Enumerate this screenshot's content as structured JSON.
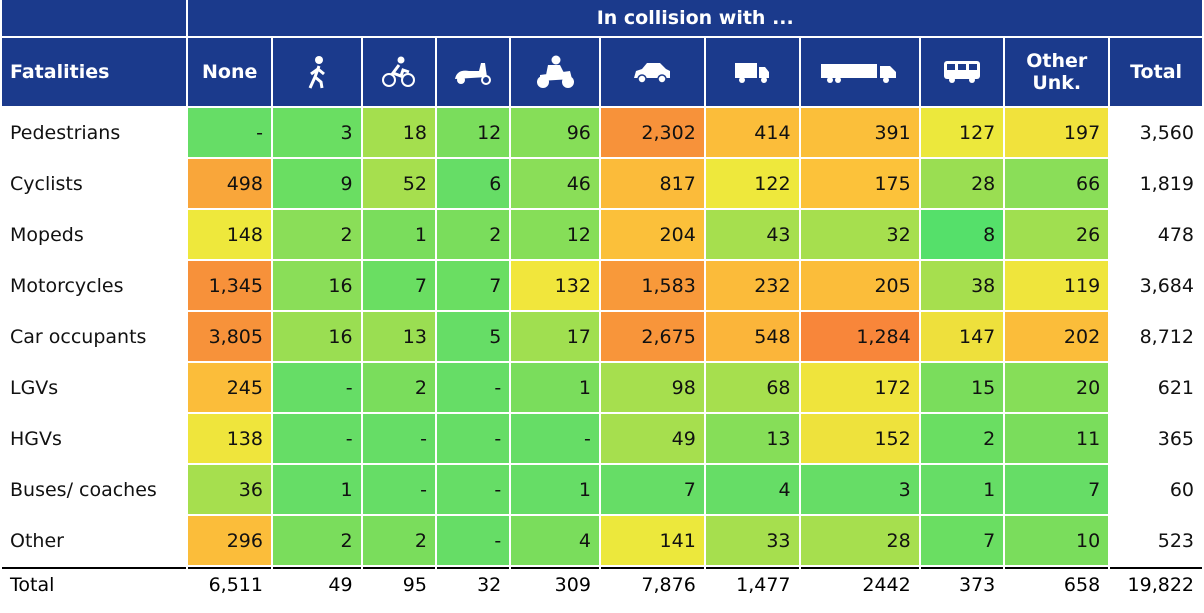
{
  "header": {
    "title": "In collision with ...",
    "row_label": "Fatalities",
    "none": "None",
    "other": "Other Unk.",
    "total": "Total"
  },
  "table": {
    "rows": [
      {
        "label": "Pedestrians",
        "cells": [
          "-",
          "3",
          "18",
          "12",
          "96",
          "2,302",
          "414",
          "391",
          "127",
          "197"
        ],
        "total": "3,560",
        "colors": [
          "#66dd66",
          "#6ade62",
          "#a4df4e",
          "#7add5c",
          "#86de58",
          "#f7923a",
          "#fbbd3a",
          "#fbbf3a",
          "#ece83c",
          "#f1e23c"
        ]
      },
      {
        "label": "Cyclists",
        "cells": [
          "498",
          "9",
          "52",
          "6",
          "46",
          "817",
          "122",
          "175",
          "28",
          "66"
        ],
        "total": "1,819",
        "colors": [
          "#f9a63a",
          "#6ade62",
          "#a6df4e",
          "#66dd66",
          "#8ade58",
          "#fbbb3a",
          "#eee83c",
          "#fcc23a",
          "#9ade52",
          "#8ade58"
        ]
      },
      {
        "label": "Mopeds",
        "cells": [
          "148",
          "2",
          "1",
          "2",
          "12",
          "204",
          "43",
          "32",
          "8",
          "26"
        ],
        "total": "478",
        "colors": [
          "#eee83c",
          "#8ade58",
          "#7add5c",
          "#7add5c",
          "#86de58",
          "#fbc03a",
          "#a6df4e",
          "#a6df4e",
          "#55e06a",
          "#a0df50"
        ]
      },
      {
        "label": "Motorcycles",
        "cells": [
          "1,345",
          "16",
          "7",
          "7",
          "132",
          "1,583",
          "232",
          "205",
          "38",
          "119"
        ],
        "total": "3,684",
        "colors": [
          "#f7913a",
          "#8ade58",
          "#6ade62",
          "#6ade62",
          "#f1e63c",
          "#f8993a",
          "#fbbb3a",
          "#fbbd3a",
          "#a6df4e",
          "#efe53c"
        ]
      },
      {
        "label": "Car occupants",
        "cells": [
          "3,805",
          "16",
          "13",
          "5",
          "17",
          "2,675",
          "548",
          "1,284",
          "147",
          "202"
        ],
        "total": "8,712",
        "colors": [
          "#f7923a",
          "#9ade52",
          "#9ade52",
          "#66dd66",
          "#a0df50",
          "#f8953a",
          "#fbb53a",
          "#f8863a",
          "#eee03c",
          "#fbbd3a"
        ]
      },
      {
        "label": "LGVs",
        "cells": [
          "245",
          "-",
          "2",
          "-",
          "1",
          "98",
          "68",
          "172",
          "15",
          "20"
        ],
        "total": "621",
        "colors": [
          "#fbbd3a",
          "#66dd66",
          "#7add5c",
          "#66dd66",
          "#7add5c",
          "#a6df4e",
          "#a6df4e",
          "#efe43c",
          "#7add5c",
          "#86de58"
        ]
      },
      {
        "label": "HGVs",
        "cells": [
          "138",
          "-",
          "-",
          "-",
          "-",
          "49",
          "13",
          "152",
          "2",
          "11"
        ],
        "total": "365",
        "colors": [
          "#efe53c",
          "#66dd66",
          "#66dd66",
          "#66dd66",
          "#66dd66",
          "#a6df4e",
          "#86de58",
          "#eee23c",
          "#6ade62",
          "#7add5c"
        ]
      },
      {
        "label": "Buses/ coaches",
        "cells": [
          "36",
          "1",
          "-",
          "-",
          "1",
          "7",
          "4",
          "3",
          "1",
          "7"
        ],
        "total": "60",
        "colors": [
          "#a6df4e",
          "#66dd66",
          "#66dd66",
          "#66dd66",
          "#66dd66",
          "#66dd66",
          "#66dd66",
          "#66dd66",
          "#66dd66",
          "#66dd66"
        ]
      },
      {
        "label": "Other",
        "cells": [
          "296",
          "2",
          "2",
          "-",
          "4",
          "141",
          "33",
          "28",
          "7",
          "10"
        ],
        "total": "523",
        "colors": [
          "#fbbd3a",
          "#7add5c",
          "#7add5c",
          "#66dd66",
          "#7add5c",
          "#ece83c",
          "#a6df4e",
          "#a6df4e",
          "#6ade62",
          "#7add5c"
        ]
      }
    ],
    "total": {
      "label": "Total",
      "cells": [
        "6,511",
        "49",
        "95",
        "32",
        "309",
        "7,876",
        "1,477",
        "2442",
        "373",
        "658"
      ],
      "total": "19,822"
    }
  }
}
